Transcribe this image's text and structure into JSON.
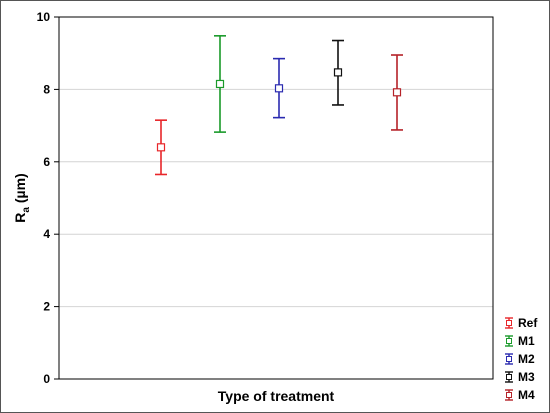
{
  "chart_data": {
    "type": "errorbar",
    "title": "",
    "xlabel": "Type of treatment",
    "ylabel": {
      "main": "R",
      "subscript": "a",
      "unit": " (µm)"
    },
    "ylim": [
      0,
      10
    ],
    "yticks": [
      0,
      2,
      4,
      6,
      8,
      10
    ],
    "grid": true,
    "legend_position": "bottom-right",
    "series": [
      {
        "name": "Ref",
        "mean": 6.4,
        "lower": 5.65,
        "upper": 7.15,
        "color": "#e8262a"
      },
      {
        "name": "M1",
        "mean": 8.15,
        "lower": 6.82,
        "upper": 9.48,
        "color": "#1a9a2a"
      },
      {
        "name": "M2",
        "mean": 8.03,
        "lower": 7.22,
        "upper": 8.85,
        "color": "#2a2ab0"
      },
      {
        "name": "M3",
        "mean": 8.47,
        "lower": 7.57,
        "upper": 9.35,
        "color": "#111111"
      },
      {
        "name": "M4",
        "mean": 7.92,
        "lower": 6.88,
        "upper": 8.95,
        "color": "#b52228"
      }
    ]
  }
}
